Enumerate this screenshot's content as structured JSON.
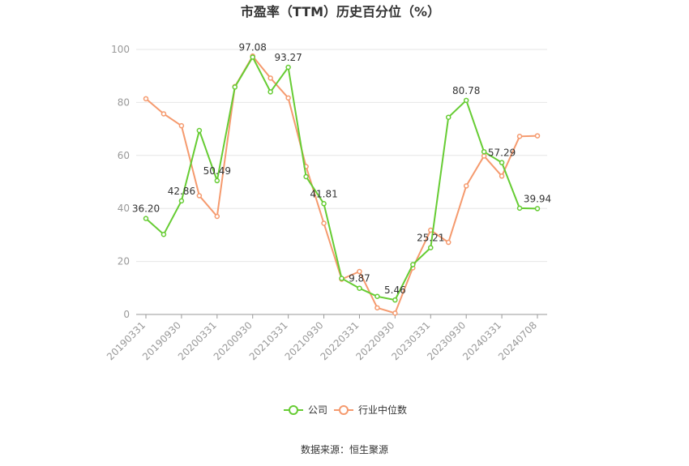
{
  "chart_data": {
    "type": "line",
    "title": "市盈率（TTM）历史百分位（%）",
    "ylim": [
      0,
      100
    ],
    "yticks": [
      0,
      20,
      40,
      60,
      80,
      100
    ],
    "grid": true,
    "legend_position": "bottom",
    "x": [
      "20190331",
      "20190630",
      "20190930",
      "20191231",
      "20200331",
      "20200630",
      "20200930",
      "20201231",
      "20210331",
      "20210630",
      "20210930",
      "20211231",
      "20220331",
      "20220630",
      "20220930",
      "20221231",
      "20230331",
      "20230630",
      "20230930",
      "20231231",
      "20240331",
      "20240630",
      "20240708"
    ],
    "x_tick_labels": [
      "20190331",
      "20190930",
      "20200331",
      "20200930",
      "20210331",
      "20210930",
      "20220331",
      "20220930",
      "20230331",
      "20230930",
      "20240331",
      "20240708"
    ],
    "series": [
      {
        "name": "公司",
        "color": "#66cc33",
        "values": [
          36.2,
          30.2,
          42.86,
          69.4,
          50.49,
          85.8,
          97.08,
          84.0,
          93.27,
          52.0,
          41.81,
          13.6,
          9.87,
          6.8,
          5.46,
          18.8,
          25.21,
          74.4,
          80.78,
          61.4,
          57.29,
          40.1,
          39.94
        ]
      },
      {
        "name": "行业中位数",
        "color": "#f59a6e",
        "values": [
          81.4,
          75.7,
          71.2,
          44.8,
          37.0,
          86.0,
          97.5,
          89.2,
          81.7,
          55.8,
          34.4,
          13.3,
          16.2,
          2.5,
          0.5,
          17.6,
          31.8,
          27.2,
          48.5,
          59.8,
          52.2,
          67.2,
          67.4
        ]
      }
    ],
    "data_labels": [
      {
        "index": 0,
        "text": "36.20"
      },
      {
        "index": 2,
        "text": "42.86"
      },
      {
        "index": 4,
        "text": "50.49"
      },
      {
        "index": 6,
        "text": "97.08"
      },
      {
        "index": 8,
        "text": "93.27"
      },
      {
        "index": 10,
        "text": "41.81"
      },
      {
        "index": 12,
        "text": "9.87"
      },
      {
        "index": 14,
        "text": "5.46"
      },
      {
        "index": 16,
        "text": "25.21"
      },
      {
        "index": 18,
        "text": "80.78"
      },
      {
        "index": 20,
        "text": "57.29"
      },
      {
        "index": 22,
        "text": "39.94"
      }
    ]
  },
  "source": "数据来源：恒生聚源"
}
